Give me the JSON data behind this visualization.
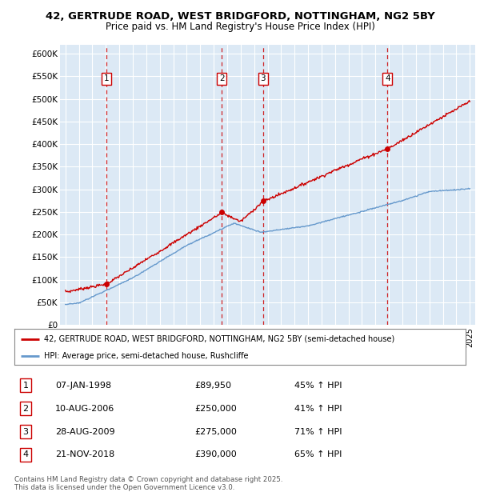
{
  "title1": "42, GERTRUDE ROAD, WEST BRIDGFORD, NOTTINGHAM, NG2 5BY",
  "title2": "Price paid vs. HM Land Registry's House Price Index (HPI)",
  "plot_bg": "#dce9f5",
  "red_color": "#cc0000",
  "blue_color": "#6699cc",
  "yticks": [
    0,
    50000,
    100000,
    150000,
    200000,
    250000,
    300000,
    350000,
    400000,
    450000,
    500000,
    550000,
    600000
  ],
  "ytick_labels": [
    "£0",
    "£50K",
    "£100K",
    "£150K",
    "£200K",
    "£250K",
    "£300K",
    "£350K",
    "£400K",
    "£450K",
    "£500K",
    "£550K",
    "£600K"
  ],
  "xlim_start": 1994.6,
  "xlim_end": 2025.4,
  "transactions": [
    {
      "num": 1,
      "date": "07-JAN-1998",
      "year": 1998.03,
      "price": 89950,
      "pct": "45%",
      "dir": "↑"
    },
    {
      "num": 2,
      "date": "10-AUG-2006",
      "year": 2006.61,
      "price": 250000,
      "pct": "41%",
      "dir": "↑"
    },
    {
      "num": 3,
      "date": "28-AUG-2009",
      "year": 2009.66,
      "price": 275000,
      "pct": "71%",
      "dir": "↑"
    },
    {
      "num": 4,
      "date": "21-NOV-2018",
      "year": 2018.89,
      "price": 390000,
      "pct": "65%",
      "dir": "↑"
    }
  ],
  "legend_label_red": "42, GERTRUDE ROAD, WEST BRIDGFORD, NOTTINGHAM, NG2 5BY (semi-detached house)",
  "legend_label_blue": "HPI: Average price, semi-detached house, Rushcliffe",
  "footer1": "Contains HM Land Registry data © Crown copyright and database right 2025.",
  "footer2": "This data is licensed under the Open Government Licence v3.0."
}
